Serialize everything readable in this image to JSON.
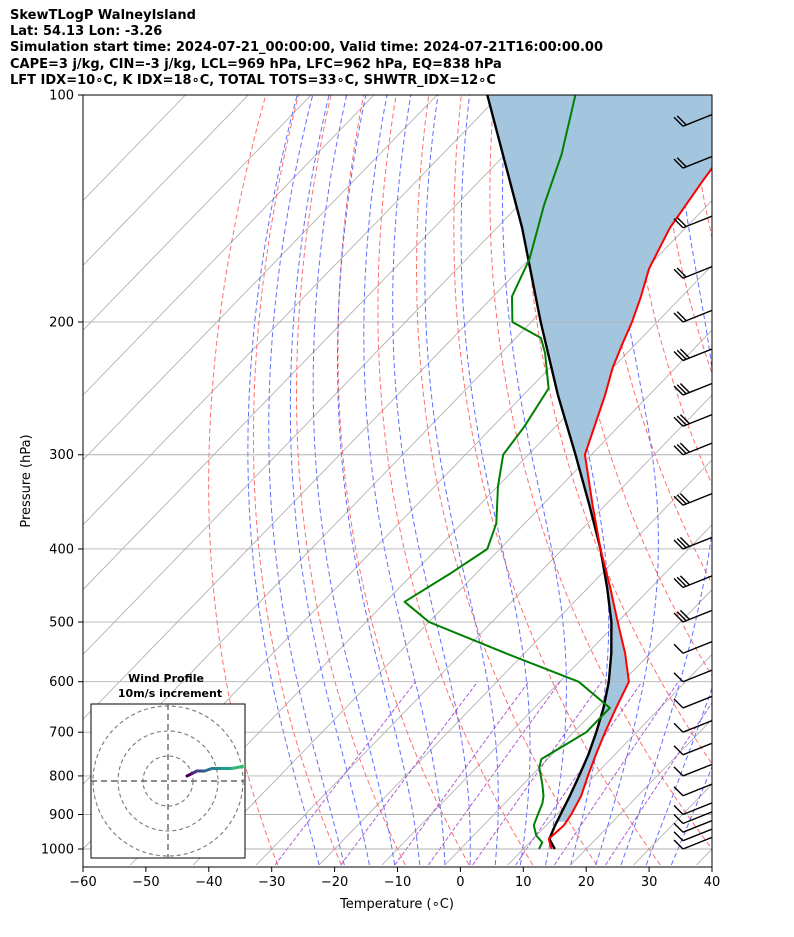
{
  "header": {
    "line1": "SkewTLogP WalneyIsland",
    "line2": "Lat: 54.13   Lon: -3.26",
    "line3": "Simulation start time: 2024-07-21_00:00:00, Valid time: 2024-07-21T16:00:00.00",
    "line4": "CAPE=3 j/kg, CIN=-3 j/kg, LCL=969 hPa, LFC=962 hPa, EQ=838 hPa",
    "line5": "LFT IDX=10∘C, K IDX=18∘C, TOTAL TOTS=33∘C, SHWTR_IDX=12∘C"
  },
  "colors": {
    "temperature": "#ff0000",
    "dewpoint": "#008000",
    "parcel": "#000000",
    "cape_fill": "#a3c5de",
    "dry_adiabat": "#ff5555",
    "moist_adiabat": "#4455ff",
    "mixing_ratio": "#9933cc",
    "isotherm": "#aaaaaa"
  },
  "chart_data": {
    "type": "line",
    "title": "SkewTLogP WalneyIsland",
    "xlabel": "Temperature (∘C)",
    "ylabel": "Pressure (hPa)",
    "xlim": [
      -60,
      40
    ],
    "ylim": [
      1050,
      100
    ],
    "x_ticks": [
      "−60",
      "−50",
      "−40",
      "−30",
      "−20",
      "−10",
      "0",
      "10",
      "20",
      "30",
      "40"
    ],
    "x_tick_values": [
      -60,
      -50,
      -40,
      -30,
      -20,
      -10,
      0,
      10,
      20,
      30,
      40
    ],
    "y_ticks": [
      "100",
      "200",
      "300",
      "400",
      "500",
      "600",
      "700",
      "800",
      "900",
      "1000"
    ],
    "y_tick_values": [
      100,
      200,
      300,
      400,
      500,
      600,
      700,
      800,
      900,
      1000
    ],
    "series": [
      {
        "name": "Temperature",
        "pressure": [
          1000,
          970,
          930,
          900,
          850,
          800,
          750,
          700,
          650,
          600,
          550,
          500,
          450,
          400,
          350,
          300,
          250,
          230,
          215,
          200,
          185,
          170,
          150,
          130,
          115,
          100
        ],
        "temp": [
          14.5,
          12.5,
          12.8,
          12.3,
          11.0,
          9.0,
          7.0,
          5.0,
          3.0,
          1.0,
          -4.0,
          -10.0,
          -16.5,
          -24.0,
          -32.0,
          -41.0,
          -47.0,
          -50.0,
          -52.0,
          -54.0,
          -56.5,
          -59.5,
          -62.5,
          -64.5,
          -66.0,
          -67.0
        ]
      },
      {
        "name": "Dewpoint",
        "pressure": [
          1000,
          980,
          960,
          930,
          900,
          870,
          850,
          820,
          780,
          760,
          720,
          700,
          650,
          600,
          550,
          500,
          470,
          430,
          400,
          370,
          330,
          300,
          275,
          245,
          220,
          210,
          200,
          185,
          165,
          140,
          120,
          100
        ],
        "temp": [
          12.5,
          12.0,
          10.0,
          8.0,
          7.0,
          6.0,
          5.0,
          3.0,
          0.0,
          -1.0,
          1.0,
          2.0,
          2.0,
          -7.0,
          -23.0,
          -40.0,
          -47.0,
          -44.0,
          -42.0,
          -44.5,
          -50.0,
          -54.0,
          -55.0,
          -57.0,
          -63.0,
          -66.0,
          -73.0,
          -77.0,
          -80.0,
          -86.0,
          -91.0,
          -98.0
        ]
      },
      {
        "name": "Parcel",
        "pressure": [
          1000,
          970,
          930,
          900,
          850,
          800,
          750,
          700,
          650,
          600,
          550,
          500,
          450,
          400,
          350,
          300,
          250,
          200,
          150,
          100
        ],
        "temp": [
          15.0,
          12.6,
          11.4,
          10.6,
          9.2,
          7.6,
          5.8,
          3.6,
          1.0,
          -2.2,
          -6.2,
          -11.0,
          -17.0,
          -24.0,
          -32.5,
          -42.5,
          -54.5,
          -68.5,
          -86.0,
          -112.0
        ]
      }
    ],
    "shaded_region": "CAPE (parcel warmer than environment)",
    "wind_barb_pressures": [
      1000,
      975,
      950,
      925,
      900,
      850,
      800,
      750,
      700,
      650,
      600,
      550,
      500,
      450,
      400,
      350,
      300,
      275,
      250,
      225,
      200,
      175,
      150,
      125,
      110,
      100
    ],
    "inset": {
      "title_line1": "Wind Profile",
      "title_line2": "10m/s increment",
      "hodograph_u": [
        2,
        4,
        6,
        9,
        12,
        16,
        20,
        25,
        28,
        30,
        32
      ],
      "hodograph_v": [
        0,
        1,
        2,
        2,
        3,
        3,
        3,
        4,
        5,
        6,
        6
      ]
    }
  }
}
